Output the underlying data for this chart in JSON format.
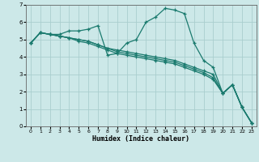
{
  "xlabel": "Humidex (Indice chaleur)",
  "background_color": "#cce8e8",
  "grid_color": "#aacece",
  "line_color": "#1a7a6e",
  "xlim": [
    -0.5,
    23.5
  ],
  "ylim": [
    0,
    7
  ],
  "xticks": [
    0,
    1,
    2,
    3,
    4,
    5,
    6,
    7,
    8,
    9,
    10,
    11,
    12,
    13,
    14,
    15,
    16,
    17,
    18,
    19,
    20,
    21,
    22,
    23
  ],
  "yticks": [
    0,
    1,
    2,
    3,
    4,
    5,
    6,
    7
  ],
  "series": [
    [
      4.8,
      5.4,
      5.3,
      5.3,
      5.5,
      5.5,
      5.6,
      5.8,
      4.1,
      4.2,
      4.8,
      5.0,
      6.0,
      6.3,
      6.8,
      6.7,
      6.5,
      4.8,
      3.8,
      3.4,
      1.9,
      2.4,
      1.1,
      0.2
    ],
    [
      4.8,
      5.4,
      5.3,
      5.2,
      5.1,
      5.0,
      4.9,
      4.7,
      4.5,
      4.4,
      4.3,
      4.2,
      4.1,
      4.0,
      3.9,
      3.8,
      3.6,
      3.4,
      3.2,
      3.0,
      1.9,
      2.4,
      1.1,
      0.2
    ],
    [
      4.8,
      5.4,
      5.3,
      5.2,
      5.1,
      5.0,
      4.9,
      4.7,
      4.5,
      4.3,
      4.2,
      4.1,
      4.0,
      3.9,
      3.8,
      3.7,
      3.5,
      3.3,
      3.1,
      2.8,
      1.9,
      2.4,
      1.1,
      0.2
    ],
    [
      4.8,
      5.4,
      5.3,
      5.2,
      5.1,
      4.9,
      4.8,
      4.6,
      4.4,
      4.2,
      4.1,
      4.0,
      3.9,
      3.8,
      3.7,
      3.6,
      3.4,
      3.2,
      3.0,
      2.7,
      1.9,
      2.4,
      1.1,
      0.2
    ]
  ]
}
